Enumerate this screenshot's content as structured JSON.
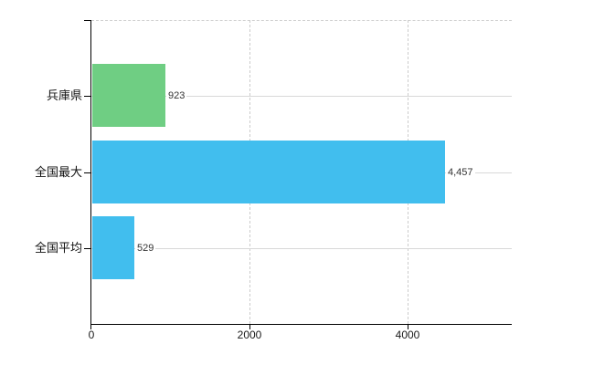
{
  "chart_data": {
    "type": "bar",
    "orientation": "horizontal",
    "title": "",
    "xlabel": "",
    "ylabel": "",
    "categories": [
      "兵庫県",
      "全国最大",
      "全国平均"
    ],
    "values": [
      923,
      4457,
      529
    ],
    "value_labels": [
      "923",
      "4,457",
      "529"
    ],
    "bar_colors": [
      "#6FCE83",
      "#41BEEE",
      "#41BEEE"
    ],
    "x_ticks": [
      0,
      2000,
      4000
    ],
    "x_tick_labels": [
      "0",
      "2000",
      "4000"
    ],
    "xlim": [
      0,
      5318
    ],
    "grid": true,
    "legend": "none"
  },
  "colors": {
    "green_bar": "#6FCE83",
    "blue_bar": "#41BEEE",
    "gridline": "#d8d8d8",
    "axis": "#000000",
    "value_text": "#333333",
    "label_text": "#111111",
    "background": "#ffffff"
  }
}
